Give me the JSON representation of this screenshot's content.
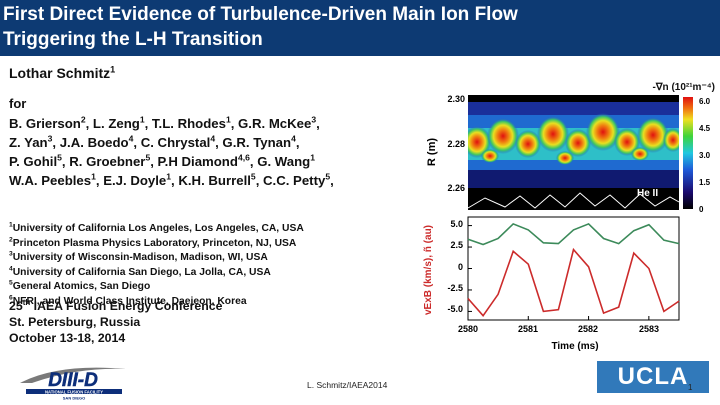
{
  "title": [
    "First Direct Evidence of Turbulence-Driven Main Ion Flow",
    "Triggering the L-H Transition"
  ],
  "presenter": {
    "name": "Lothar Schmitz",
    "sup": "1"
  },
  "for_label": "for",
  "coauthor_lines": [
    [
      {
        "t": "B. Grierson"
      },
      {
        "s": "2"
      },
      {
        "t": ", L. Zeng"
      },
      {
        "s": "1"
      },
      {
        "t": ", T.L. Rhodes"
      },
      {
        "s": "1"
      },
      {
        "t": ", G.R. McKee"
      },
      {
        "s": "3"
      },
      {
        "t": ","
      }
    ],
    [
      {
        "t": "Z. Yan"
      },
      {
        "s": "3"
      },
      {
        "t": ", J.A. Boedo"
      },
      {
        "s": "4"
      },
      {
        "t": ", C. Chrystal"
      },
      {
        "s": "4"
      },
      {
        "t": ", G.R. Tynan"
      },
      {
        "s": "4"
      },
      {
        "t": ","
      }
    ],
    [
      {
        "t": "P. Gohil"
      },
      {
        "s": "5"
      },
      {
        "t": ", R. Groebner"
      },
      {
        "s": "5"
      },
      {
        "t": ", P.H Diamond"
      },
      {
        "s": "4,6"
      },
      {
        "t": ", G. Wang"
      },
      {
        "s": "1"
      }
    ],
    [
      {
        "t": "W.A. Peebles"
      },
      {
        "s": "1"
      },
      {
        "t": ", E.J. Doyle"
      },
      {
        "s": "1"
      },
      {
        "t": ", K.H. Burrell"
      },
      {
        "s": "5"
      },
      {
        "t": ", C.C. Petty"
      },
      {
        "s": "5"
      },
      {
        "t": ","
      }
    ]
  ],
  "affiliations": [
    {
      "sup": "1",
      "text": "University of California Los Angeles, Los Angeles, CA, USA"
    },
    {
      "sup": "2",
      "text": "Princeton Plasma Physics Laboratory, Princeton, NJ, USA"
    },
    {
      "sup": "3",
      "text": "University of Wisconsin-Madison, Madison, WI, USA"
    },
    {
      "sup": "4",
      "text": "University of California San Diego, La Jolla, CA, USA"
    },
    {
      "sup": "5",
      "text": "General Atomics, San Diego"
    },
    {
      "sup": "6",
      "text": "NFRI, and World Class Institute, Daejeon, Korea"
    }
  ],
  "conference": {
    "ordinal": "25",
    "ordinal_sup": "th",
    "name": " IAEA Fusion Energy Conference",
    "city": "St. Petersburg, Russia",
    "dates": "October 13-18, 2014"
  },
  "logo_diiid": {
    "main": "DIII-D",
    "sub1": "NATIONAL FUSION FACILITY",
    "sub2": "SAN DIEGO"
  },
  "footer_text": "L. Schmitz/IAEA2014",
  "ucla_logo": "UCLA",
  "page_number": "1",
  "colors": {
    "title_bar": "#0d3a73",
    "ucla": "#3179ba",
    "density_trace": "#3c8a5a",
    "vexb_trace": "#cc2b2b"
  },
  "chart_data": [
    {
      "type": "heatmap",
      "title": "-∇n (10²¹m⁻⁴)",
      "ylabel": "R (m)",
      "yticks": [
        "2.30",
        "2.28",
        "2.26"
      ],
      "ylim": [
        2.255,
        2.302
      ],
      "colorbar": {
        "ticks": [
          "6.0",
          "4.5",
          "3.0",
          "1.5",
          "0"
        ],
        "range": [
          0,
          6.0
        ]
      },
      "annotation": "He II"
    },
    {
      "type": "line",
      "xlabel": "Time (ms)",
      "ylabel": "vExB (km/s), ñ (au)",
      "xticks": [
        "2580",
        "2581",
        "2582",
        "2583"
      ],
      "xlim": [
        2580,
        2583.5
      ],
      "yticks": [
        "5.0",
        "2.5",
        "0",
        "-2.5",
        "-5.0"
      ],
      "ylim": [
        -6,
        6
      ],
      "series": [
        {
          "name": "ñ",
          "x": [
            2580.0,
            2580.25,
            2580.5,
            2580.75,
            2581.0,
            2581.25,
            2581.5,
            2581.75,
            2582.0,
            2582.25,
            2582.5,
            2582.75,
            2583.0,
            2583.25,
            2583.5
          ],
          "values": [
            3.4,
            2.8,
            3.5,
            5.2,
            4.5,
            3.0,
            2.9,
            4.5,
            5.2,
            3.5,
            2.9,
            4.4,
            5.1,
            3.3,
            2.9
          ]
        },
        {
          "name": "vExB",
          "x": [
            2580.0,
            2580.25,
            2580.5,
            2580.75,
            2581.0,
            2581.25,
            2581.5,
            2581.75,
            2582.0,
            2582.25,
            2582.5,
            2582.75,
            2583.0,
            2583.25,
            2583.5
          ],
          "values": [
            -3.5,
            -5.5,
            -3.0,
            2.0,
            0.5,
            -5.0,
            -4.8,
            2.2,
            0.2,
            -5.2,
            -4.5,
            1.8,
            0.0,
            -5.0,
            -3.8
          ]
        }
      ]
    }
  ]
}
